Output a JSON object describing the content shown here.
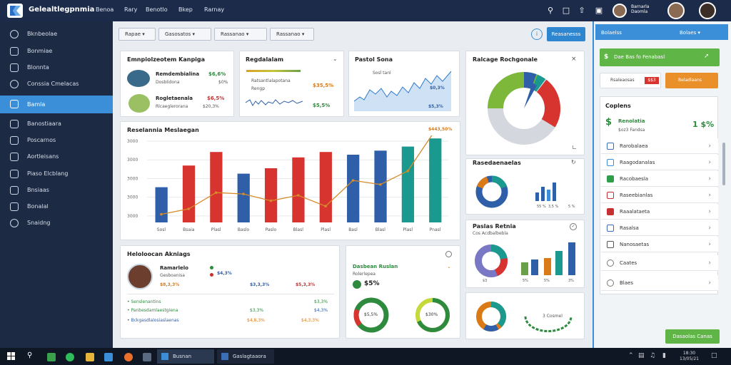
{
  "app": {
    "title": "Gelealtlegpnmia",
    "menu": [
      "Benoa",
      "Rary",
      "Benotlo",
      "Bkep",
      "Rarnay"
    ],
    "user_name_line1": "Barnarla",
    "user_name_line2": "Daomla"
  },
  "sidebar": {
    "items": [
      {
        "label": "Bknbeolae",
        "icon": "dashboard-icon"
      },
      {
        "label": "Bonmiae",
        "icon": "monitor-icon"
      },
      {
        "label": "Blonnta",
        "icon": "chart-icon"
      },
      {
        "label": "Conssia Cmelacas",
        "icon": "chat-icon"
      },
      {
        "label": "Bamla",
        "icon": "grid-icon"
      },
      {
        "label": "Banostiaara",
        "icon": "truck-icon"
      },
      {
        "label": "Poscarnos",
        "icon": "document-icon"
      },
      {
        "label": "Aortleisans",
        "icon": "file-icon"
      },
      {
        "label": "Piaso Elcblang",
        "icon": "camera-icon"
      },
      {
        "label": "Bnsiaas",
        "icon": "list-icon"
      },
      {
        "label": "Bonalal",
        "icon": "settings-icon"
      },
      {
        "label": "Snaidng",
        "icon": "help-icon"
      }
    ]
  },
  "toolbar": {
    "filter1": "Rapae",
    "filter2": "Gasosatos",
    "filter3": "Rassanao",
    "filter4": "Rassanao",
    "primary_button": "Reasanesss"
  },
  "cards": {
    "employee": {
      "title": "Emnpiolzeotem Kanpiga",
      "rows": [
        {
          "name": "Remdembialina",
          "sub": "Dosblidona",
          "value": "$6,6%",
          "sub_value": "$0%"
        },
        {
          "name": "Rogletaenala",
          "sub": "Rlcaeglerorana",
          "value": "$6,5%",
          "sub_value": "$20,3%"
        }
      ]
    },
    "revenue": {
      "title": "Regdalalam",
      "legend1": "Ratsantlalapotana",
      "legend2": "Rengp",
      "value1": "$35,5%",
      "value2": "$5,5%"
    },
    "sales": {
      "title": "Pastol Sona",
      "legend": "Sosl tanl",
      "value1": "$0,3%",
      "value2": "$5,3%"
    },
    "pie": {
      "title": "Ralcage Rochgonale"
    },
    "main_chart": {
      "title": "Reselannia Meslaegan",
      "value": "$443,50%"
    },
    "bottom_left": {
      "title": "Heloloocan Akniags",
      "person": "Ramarlelo",
      "person_sub": "Gesboanisa",
      "v1": "$4,3%",
      "v2": "$8,3,3%",
      "v3": "$3,3,3%",
      "v4": "$5,3,3%",
      "list": [
        {
          "label": "Senslenantins",
          "value": "$3,3%",
          "color": "#2e8b3e"
        },
        {
          "label": "Panbesdamlaestgiena",
          "value": "$3,3%",
          "color": "#2e8b3e"
        },
        {
          "label": "Bchbsaaion",
          "value": "$4,3%",
          "color": "#2e5fa8"
        },
        {
          "label": "Bckgasdlalosiaslaenas",
          "value": "$4,8,3%",
          "color": "#d97a16"
        }
      ],
      "total_right": "$4,3,3%"
    },
    "gauges": {
      "title": "Dasbean Ruslan",
      "sub": "Rolerlepea",
      "value": "$5%",
      "gauge1": "$5,5%",
      "gauge2": "$30%"
    },
    "donut_bar": {
      "title": "Rasedaenaelas",
      "labels": [
        "55 %",
        "3,5 %",
        "5 %"
      ]
    },
    "perf": {
      "title": "Paslas Retnia",
      "sub": "Cos Acdbalbebla",
      "labels": [
        "$3",
        "5%",
        "5%",
        "3%"
      ]
    },
    "bottom_right": {
      "label": "3 Cosmel"
    }
  },
  "right_panel": {
    "header": "Bolaelss",
    "header_btn": "Bolaes",
    "green_btn": "Dae Bas fo Fenabasl",
    "red_label": "Rsaleaosas",
    "red_badge": "$$3",
    "orange_btn": "Beladlaans",
    "section_title": "Coplens",
    "highlight_label": "Renolatia",
    "highlight_sub": "$oz3 Fandsa",
    "highlight_value": "1 $%",
    "items": [
      {
        "label": "Rarobalaea",
        "color": "#3a6fb8"
      },
      {
        "label": "Raagodanalas",
        "color": "#3a8fd8"
      },
      {
        "label": "Racobaesla",
        "color": "#2e9e4a"
      },
      {
        "label": "Raseebianlas",
        "color": "#c73030"
      },
      {
        "label": "Raaalataeta",
        "color": "#c73030"
      },
      {
        "label": "Rasalsa",
        "color": "#3a6fb8"
      },
      {
        "label": "Nanosaetas",
        "color": "#555"
      },
      {
        "label": "Caates",
        "color": "#777"
      },
      {
        "label": "Blaes",
        "color": "#777"
      }
    ],
    "footer_btn": "Dasaolas Canas"
  },
  "taskbar": {
    "btn1": "Busnan Sasbaesa",
    "btn2": "Gaslagtaaora",
    "clock_line1": "18:30",
    "clock_line2": "13/05/21"
  },
  "chart_data": {
    "type": "bar",
    "title": "Reselannia Meslaegan",
    "categories": [
      "Sosl",
      "Bsaia",
      "Plasl",
      "Baslo",
      "Paslo",
      "Blasl",
      "Plasl",
      "Basl",
      "Blasl",
      "Plasl",
      "Pnasl"
    ],
    "ylim": [
      0,
      3000
    ],
    "yticks": [
      "3000",
      "3000",
      "3000",
      "3000",
      "3000"
    ],
    "series": [
      {
        "name": "",
        "type": "bar",
        "values": [
          1300,
          2100,
          2600,
          1800,
          2000,
          2400,
          2600,
          2500,
          2650,
          2800,
          3100
        ],
        "colors": [
          "#2e5fa8",
          "#d8342f",
          "#d8342f",
          "#2e5fa8",
          "#d8342f",
          "#d8342f",
          "#d8342f",
          "#2e5fa8",
          "#2e5fa8",
          "#1a9a8f",
          "#1a9a8f"
        ]
      },
      {
        "name": "",
        "type": "line",
        "values": [
          300,
          500,
          1100,
          1050,
          800,
          1000,
          600,
          1550,
          1400,
          1900,
          3400
        ],
        "color": "#d58b2a"
      }
    ]
  }
}
